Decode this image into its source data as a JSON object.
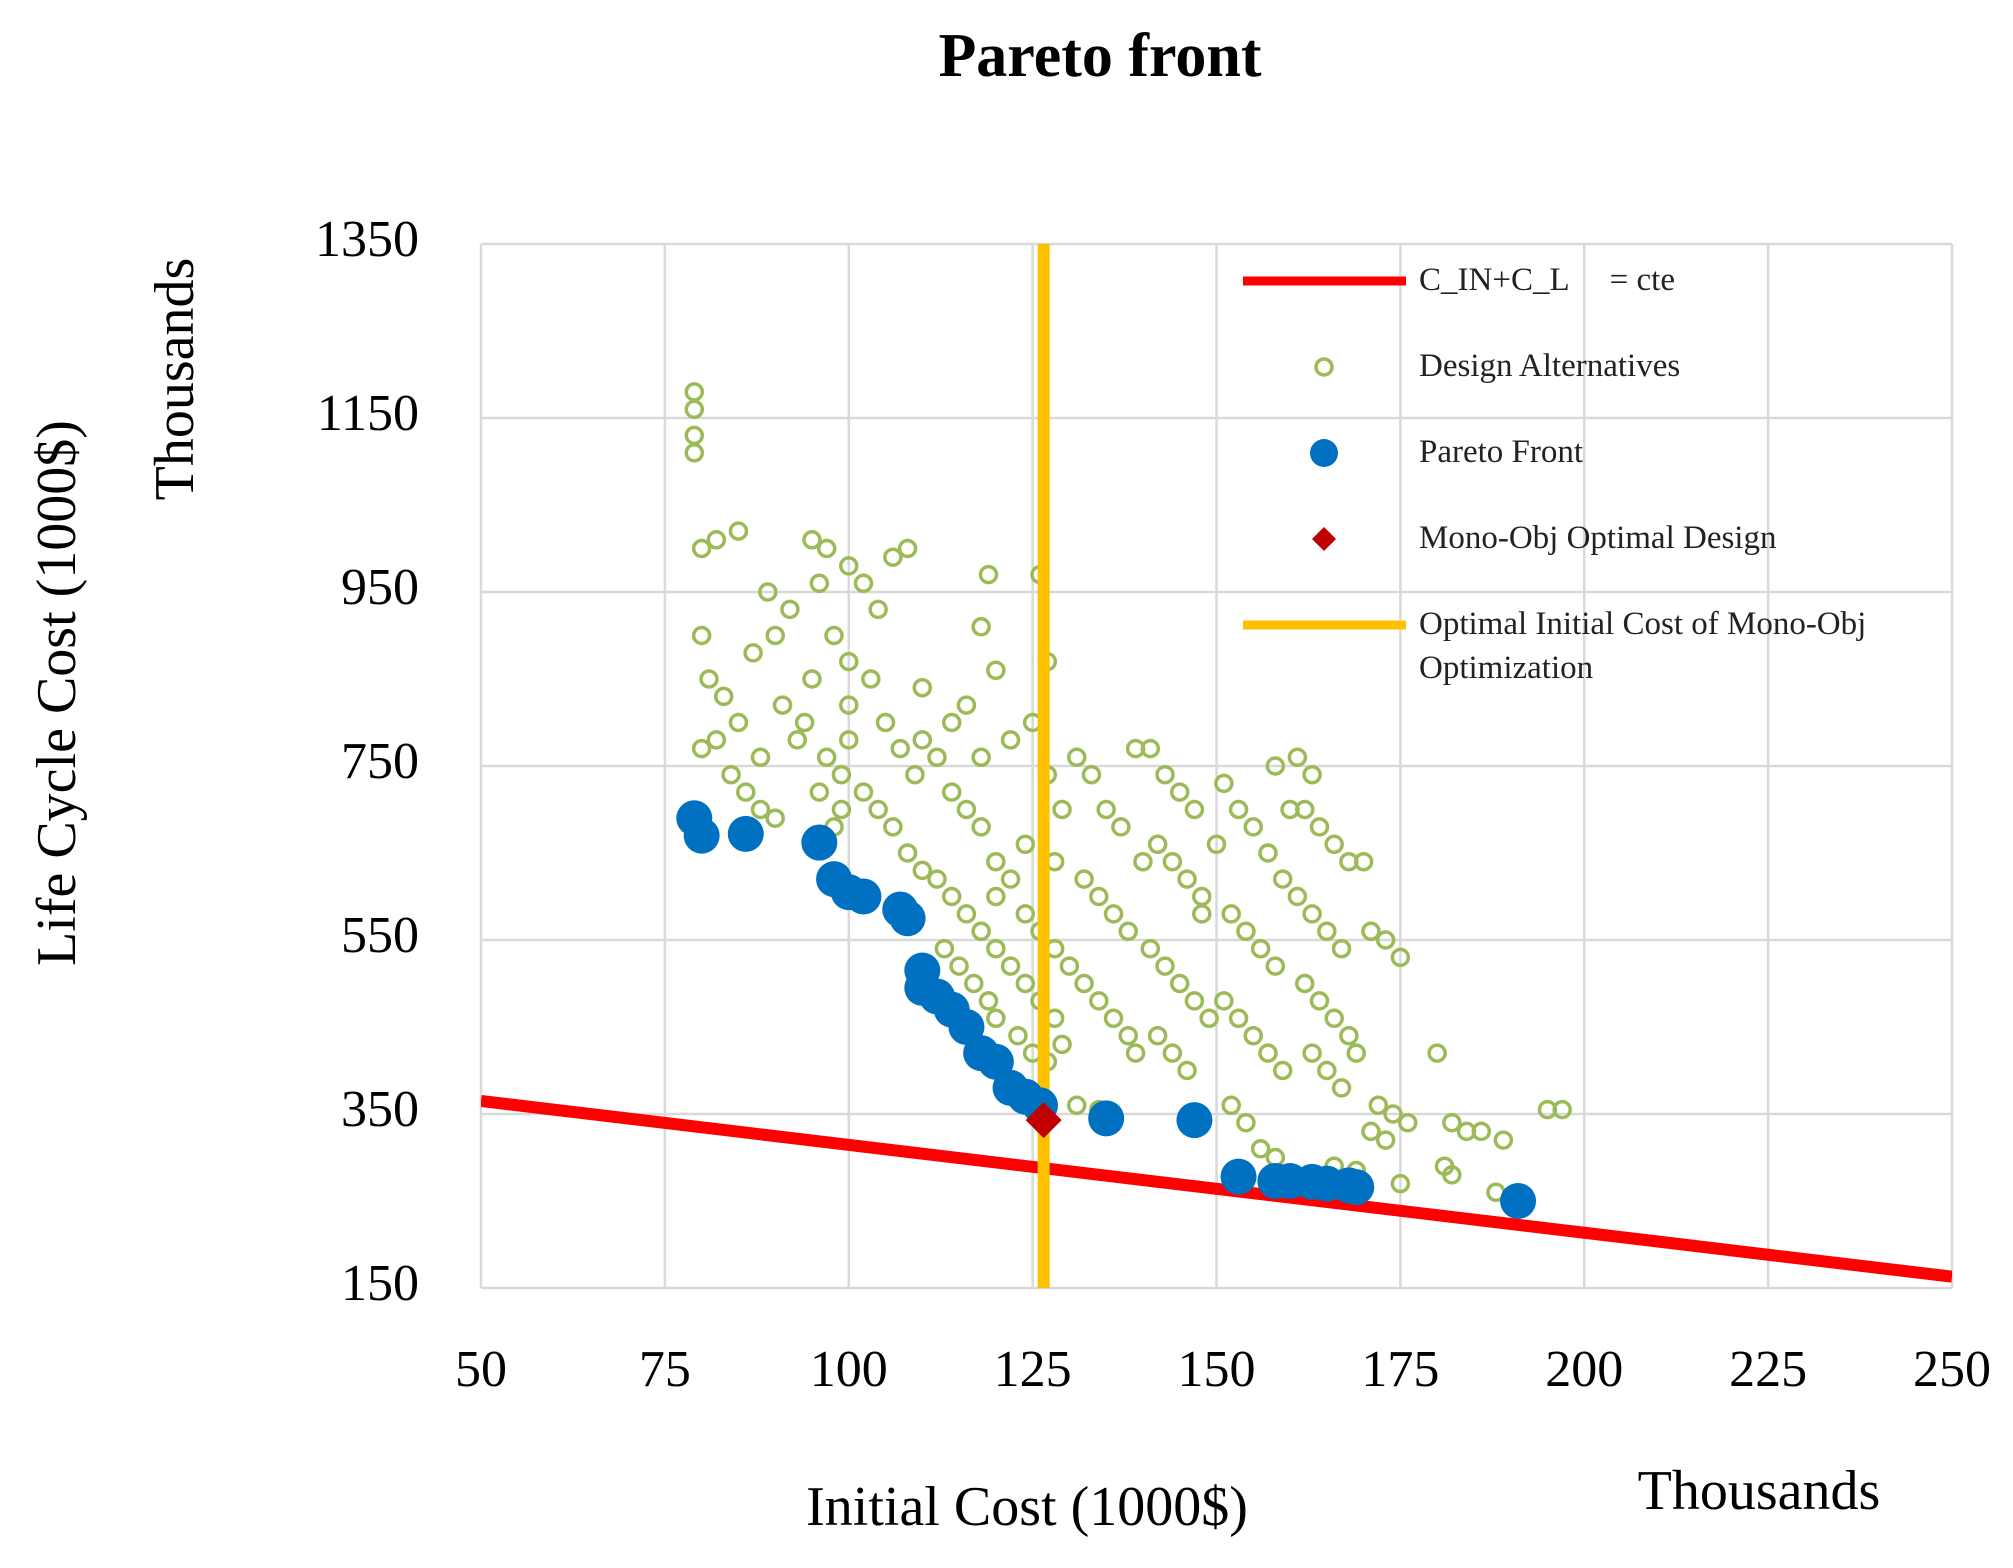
{
  "chart_data": {
    "type": "scatter",
    "title": "Pareto front",
    "x_label": "Initial Cost (1000$)",
    "y_label": "Life Cycle Cost (1000$)",
    "x_unit_label": "Thousands",
    "y_unit_label": "Thousands",
    "xlim": [
      50,
      250
    ],
    "xticks": [
      50,
      75,
      100,
      125,
      150,
      175,
      200,
      225,
      250
    ],
    "ylim": [
      150,
      1350
    ],
    "yticks": [
      150,
      350,
      550,
      750,
      950,
      1150,
      1350
    ],
    "grid": true,
    "legend": "upper right",
    "series": [
      {
        "name": "C_IN+C_L     = cte",
        "mark": "line",
        "color": "#ff0000",
        "x": [
          50,
          250
        ],
        "values": [
          365,
          163
        ]
      },
      {
        "name": "Design Alternatives",
        "mark": "hollow-circle",
        "color": "#9bbb59",
        "x": [
          79,
          79,
          79,
          79,
          80,
          82,
          85,
          80,
          81,
          83,
          85,
          82,
          80,
          84,
          86,
          88,
          87,
          89,
          90,
          92,
          91,
          93,
          88,
          90,
          95,
          97,
          96,
          98,
          95,
          94,
          97,
          99,
          100,
          100,
          100,
          100,
          99,
          98,
          96,
          102,
          104,
          106,
          108,
          103,
          105,
          107,
          109,
          104,
          106,
          108,
          110,
          102,
          110,
          110,
          112,
          114,
          116,
          118,
          112,
          114,
          116,
          118,
          120,
          113,
          115,
          117,
          119,
          120,
          119,
          118,
          120,
          116,
          114,
          118,
          120,
          120,
          122,
          124,
          126,
          128,
          122,
          124,
          126,
          128,
          123,
          125,
          127,
          129,
          126,
          127,
          125,
          122,
          127,
          129,
          124,
          128,
          131,
          133,
          135,
          137,
          132,
          134,
          136,
          138,
          130,
          132,
          134,
          136,
          138,
          131,
          134,
          139,
          140,
          139,
          141,
          143,
          145,
          147,
          142,
          144,
          146,
          148,
          141,
          143,
          145,
          147,
          149,
          142,
          144,
          146,
          148,
          150,
          151,
          153,
          155,
          157,
          159,
          152,
          154,
          156,
          158,
          151,
          153,
          155,
          157,
          159,
          152,
          154,
          156,
          158,
          160,
          158,
          161,
          163,
          162,
          164,
          166,
          168,
          161,
          163,
          165,
          167,
          162,
          164,
          166,
          168,
          163,
          165,
          167,
          169,
          170,
          166,
          169,
          171,
          173,
          175,
          172,
          174,
          171,
          173,
          176,
          180,
          182,
          184,
          186,
          181,
          182,
          189,
          188,
          195,
          197,
          175
        ],
        "values": [
          1180,
          1160,
          1130,
          1110,
          1000,
          1010,
          1020,
          900,
          850,
          830,
          800,
          780,
          770,
          740,
          720,
          760,
          880,
          950,
          900,
          930,
          820,
          780,
          700,
          690,
          1010,
          1000,
          960,
          900,
          850,
          800,
          760,
          740,
          980,
          870,
          820,
          780,
          700,
          680,
          720,
          960,
          930,
          990,
          1000,
          850,
          800,
          770,
          740,
          700,
          680,
          650,
          630,
          720,
          840,
          780,
          760,
          720,
          700,
          680,
          620,
          600,
          580,
          560,
          540,
          540,
          520,
          500,
          480,
          460,
          970,
          910,
          860,
          820,
          800,
          760,
          640,
          600,
          620,
          580,
          560,
          540,
          520,
          500,
          480,
          460,
          440,
          420,
          410,
          430,
          970,
          870,
          800,
          780,
          740,
          700,
          660,
          640,
          760,
          740,
          700,
          680,
          620,
          600,
          580,
          560,
          520,
          500,
          480,
          460,
          440,
          360,
          355,
          420,
          640,
          770,
          770,
          740,
          720,
          700,
          660,
          640,
          620,
          600,
          540,
          520,
          500,
          480,
          460,
          440,
          420,
          400,
          580,
          660,
          730,
          700,
          680,
          650,
          620,
          580,
          560,
          540,
          520,
          480,
          460,
          440,
          420,
          400,
          360,
          340,
          310,
          300,
          700,
          750,
          760,
          740,
          700,
          680,
          660,
          640,
          600,
          580,
          560,
          540,
          500,
          480,
          460,
          440,
          420,
          400,
          380,
          420,
          640,
          290,
          285,
          560,
          550,
          530,
          360,
          350,
          330,
          320,
          340,
          420,
          340,
          330,
          330,
          290,
          280,
          320,
          260,
          355,
          355,
          270
        ]
      },
      {
        "name": "Pareto Front",
        "mark": "circle",
        "color": "#0070c0",
        "x": [
          79,
          80,
          86,
          96,
          98,
          100,
          102,
          107,
          108,
          110,
          110,
          112,
          114,
          116,
          118,
          120,
          122,
          124,
          126,
          135,
          147,
          153,
          158,
          160,
          163,
          165,
          168,
          169,
          191
        ],
        "values": [
          690,
          670,
          672,
          662,
          620,
          605,
          600,
          585,
          575,
          515,
          495,
          485,
          470,
          450,
          420,
          410,
          380,
          370,
          360,
          345,
          343,
          278,
          273,
          273,
          272,
          270,
          268,
          266,
          250
        ]
      },
      {
        "name": "Mono-Obj Optimal Design",
        "mark": "diamond",
        "color": "#c00000",
        "x": [
          126.5
        ],
        "values": [
          343
        ]
      },
      {
        "name": "Optimal Initial Cost of Mono-Obj Optimization",
        "mark": "line",
        "color": "#ffc000",
        "x": [
          126.5,
          126.5
        ],
        "values": [
          150,
          1350
        ]
      }
    ]
  }
}
